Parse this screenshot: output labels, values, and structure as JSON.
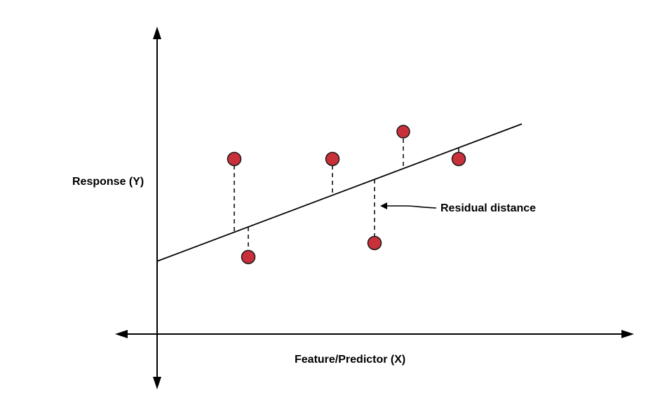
{
  "labels": {
    "y_axis": "Response (Y)",
    "x_axis": "Feature/Predictor (X)",
    "residual": "Residual distance"
  },
  "colors": {
    "point_fill": "#c8303a",
    "point_stroke": "#1a1a1a",
    "line": "#000000",
    "background": "#ffffff"
  }
}
